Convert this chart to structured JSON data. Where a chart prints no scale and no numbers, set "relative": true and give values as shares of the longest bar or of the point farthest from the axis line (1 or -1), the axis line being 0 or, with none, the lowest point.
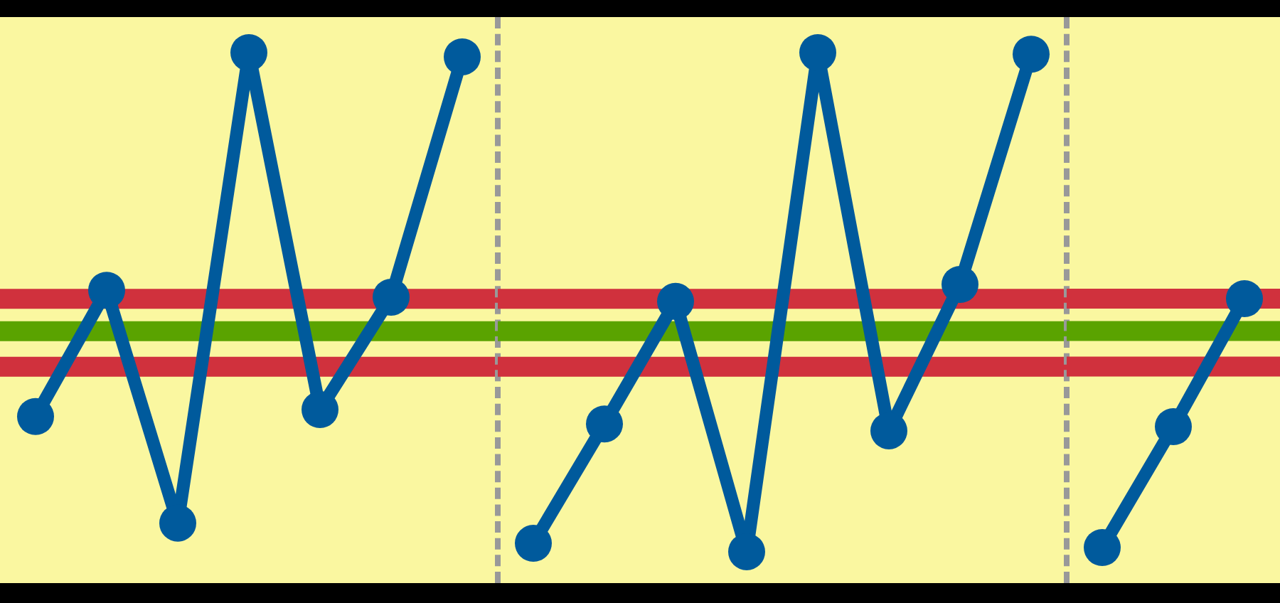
{
  "chart_data": [
    {
      "type": "line",
      "relative": true,
      "categories": [
        null,
        null,
        null,
        null,
        null,
        null,
        null
      ],
      "series": [
        {
          "color": "#005a9c",
          "values": [
            0.314,
            0.552,
            0.113,
            1.0,
            0.327,
            0.539,
            0.992
          ]
        }
      ],
      "ref_lines": [
        {
          "axis": "y",
          "value": 0.536,
          "color": "#d0313d"
        },
        {
          "axis": "y",
          "value": 0.475,
          "color": "#5aa300"
        },
        {
          "axis": "y",
          "value": 0.408,
          "color": "#d0313d"
        }
      ],
      "marker": "circle",
      "line_style": "solid",
      "legend": false,
      "tick_labels": false
    },
    {
      "type": "line",
      "relative": true,
      "categories": [
        null,
        null,
        null,
        null,
        null,
        null,
        null,
        null
      ],
      "series": [
        {
          "color": "#005a9c",
          "values": [
            0.075,
            0.3,
            0.531,
            0.059,
            1.0,
            0.287,
            0.563,
            0.997
          ]
        }
      ],
      "ref_lines": [
        {
          "axis": "y",
          "value": 0.536,
          "color": "#d0313d"
        },
        {
          "axis": "y",
          "value": 0.475,
          "color": "#5aa300"
        },
        {
          "axis": "y",
          "value": 0.408,
          "color": "#d0313d"
        }
      ],
      "marker": "circle",
      "line_style": "solid",
      "legend": false,
      "tick_labels": false
    },
    {
      "type": "line",
      "relative": true,
      "categories": [
        null,
        null,
        null
      ],
      "series": [
        {
          "color": "#005a9c",
          "values": [
            0.125,
            0.55,
            1.0
          ]
        }
      ],
      "ref_lines": [
        {
          "axis": "y",
          "value": 1.0,
          "color": "#d0313d"
        },
        {
          "axis": "y",
          "value": 0.886,
          "color": "#5aa300"
        },
        {
          "axis": "y",
          "value": 0.761,
          "color": "#d0313d"
        }
      ],
      "marker": "circle",
      "line_style": "solid",
      "legend": false,
      "tick_labels": false
    }
  ]
}
